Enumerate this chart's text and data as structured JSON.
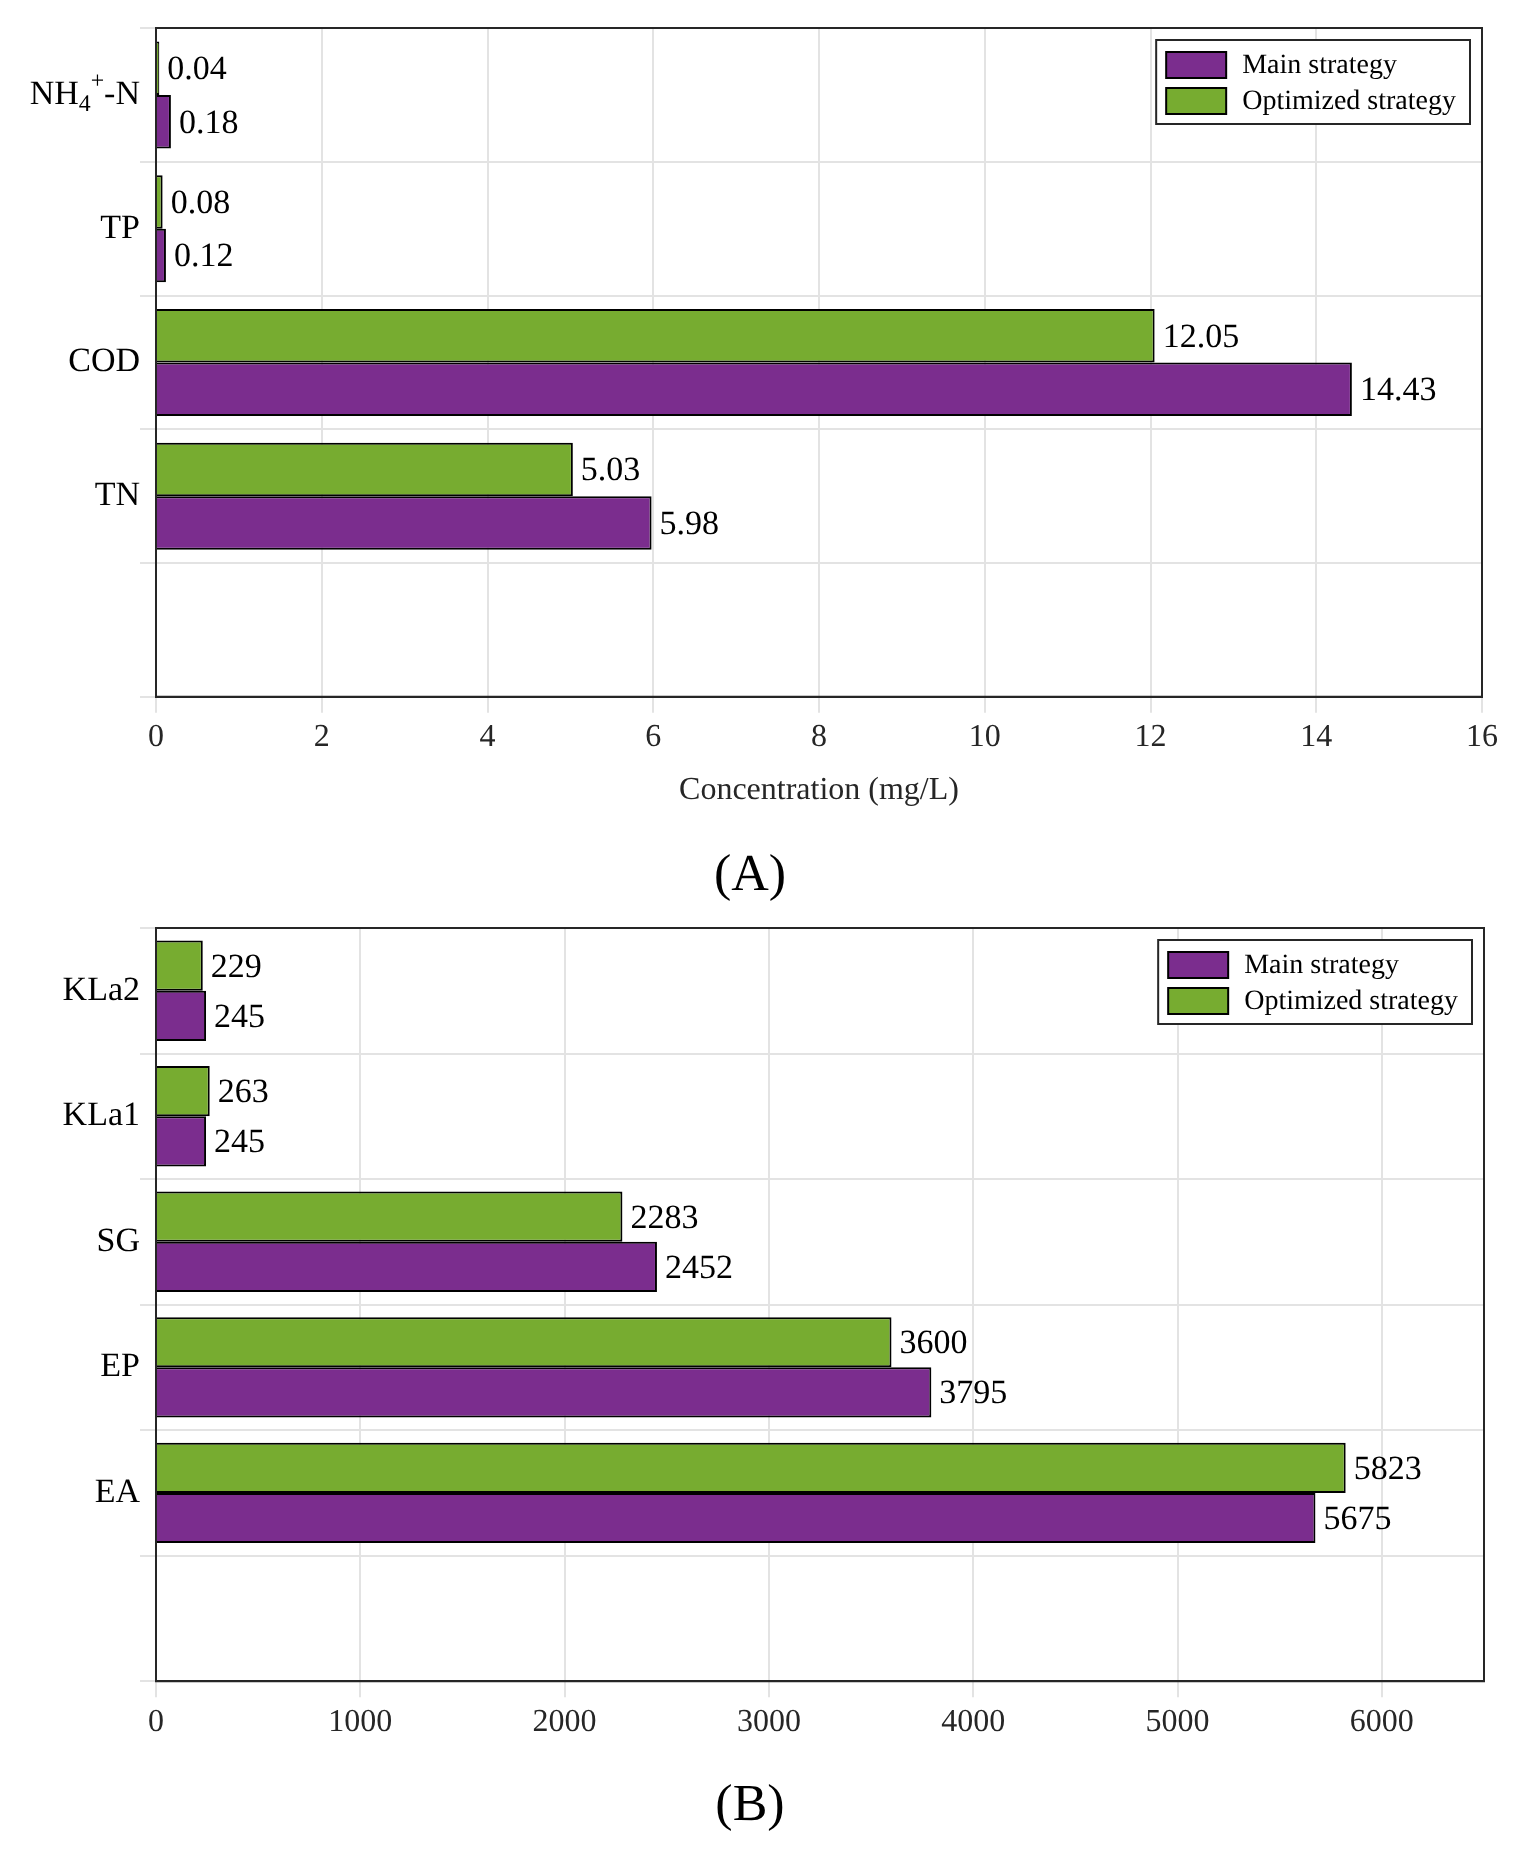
{
  "chart_data": [
    {
      "type": "bar",
      "orientation": "horizontal",
      "title": "(A)",
      "xlabel": "Concentration (mg/L)",
      "categories": [
        "NH$_{4}$$^{+}$-N",
        "TP",
        "COD",
        "TN",
        null
      ],
      "series": [
        {
          "name": "Main strategy",
          "color": "#7b2d8e",
          "values": [
            0.18,
            0.12,
            14.43,
            5.98,
            null
          ]
        },
        {
          "name": "Optimized strategy",
          "color": "#77ac30",
          "values": [
            0.04,
            0.08,
            12.05,
            5.03,
            null
          ]
        }
      ],
      "xlim": [
        0,
        16
      ],
      "xticks": [
        0,
        2,
        4,
        6,
        8,
        10,
        12,
        14,
        16
      ],
      "grid": true,
      "legend": "top right",
      "data_labels": true
    },
    {
      "type": "bar",
      "orientation": "horizontal",
      "title": "(B)",
      "categories": [
        "KLa2",
        "KLa1",
        "SG",
        "EP",
        "EA",
        null
      ],
      "series": [
        {
          "name": "Main strategy",
          "color": "#7b2d8e",
          "values": [
            245,
            245,
            2452,
            3795,
            5675,
            null
          ]
        },
        {
          "name": "Optimized strategy",
          "color": "#77ac30",
          "values": [
            229,
            263,
            2283,
            3600,
            5823,
            null
          ]
        }
      ],
      "xlim": [
        0,
        6500
      ],
      "xticks": [
        0,
        1000,
        2000,
        3000,
        4000,
        5000,
        6000
      ],
      "grid": true,
      "legend": "top right",
      "data_labels": true
    }
  ]
}
